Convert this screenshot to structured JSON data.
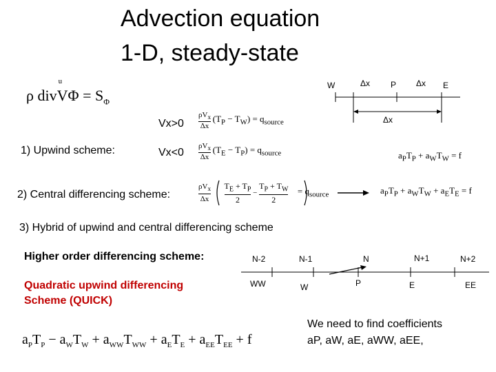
{
  "slide": {
    "title_line1": "Advection equation",
    "title_line2": "1-D, steady-state"
  },
  "grid_top": {
    "W": "W",
    "P": "P",
    "E": "E",
    "dx1": "Δx",
    "dx2": "Δx",
    "dx3": "Δx"
  },
  "conditions": {
    "vx_pos": "Vx>0",
    "vx_neg": "Vx<0"
  },
  "schemes": {
    "upwind": "1) Upwind scheme:",
    "central": "2) Central differencing scheme:",
    "hybrid": "3) Hybrid of upwind and central differencing scheme",
    "higher": "Higher order differencing  scheme:",
    "quick_line1": "Quadratic upwind differencing",
    "quick_line2": "Scheme (QUICK)"
  },
  "grid_bottom": {
    "n_minus2": "N-2",
    "n_minus1": "N-1",
    "n": "N",
    "n_plus1": "N+1",
    "n_plus2": "N+2",
    "ww": "WW",
    "w": "W",
    "p": "P",
    "e": "E",
    "ee": "EE"
  },
  "note": {
    "line1": "We need to find coefficients",
    "line2": "aP, aW, aE, aWW, aEE,"
  },
  "colors": {
    "accent": "#c00000"
  }
}
